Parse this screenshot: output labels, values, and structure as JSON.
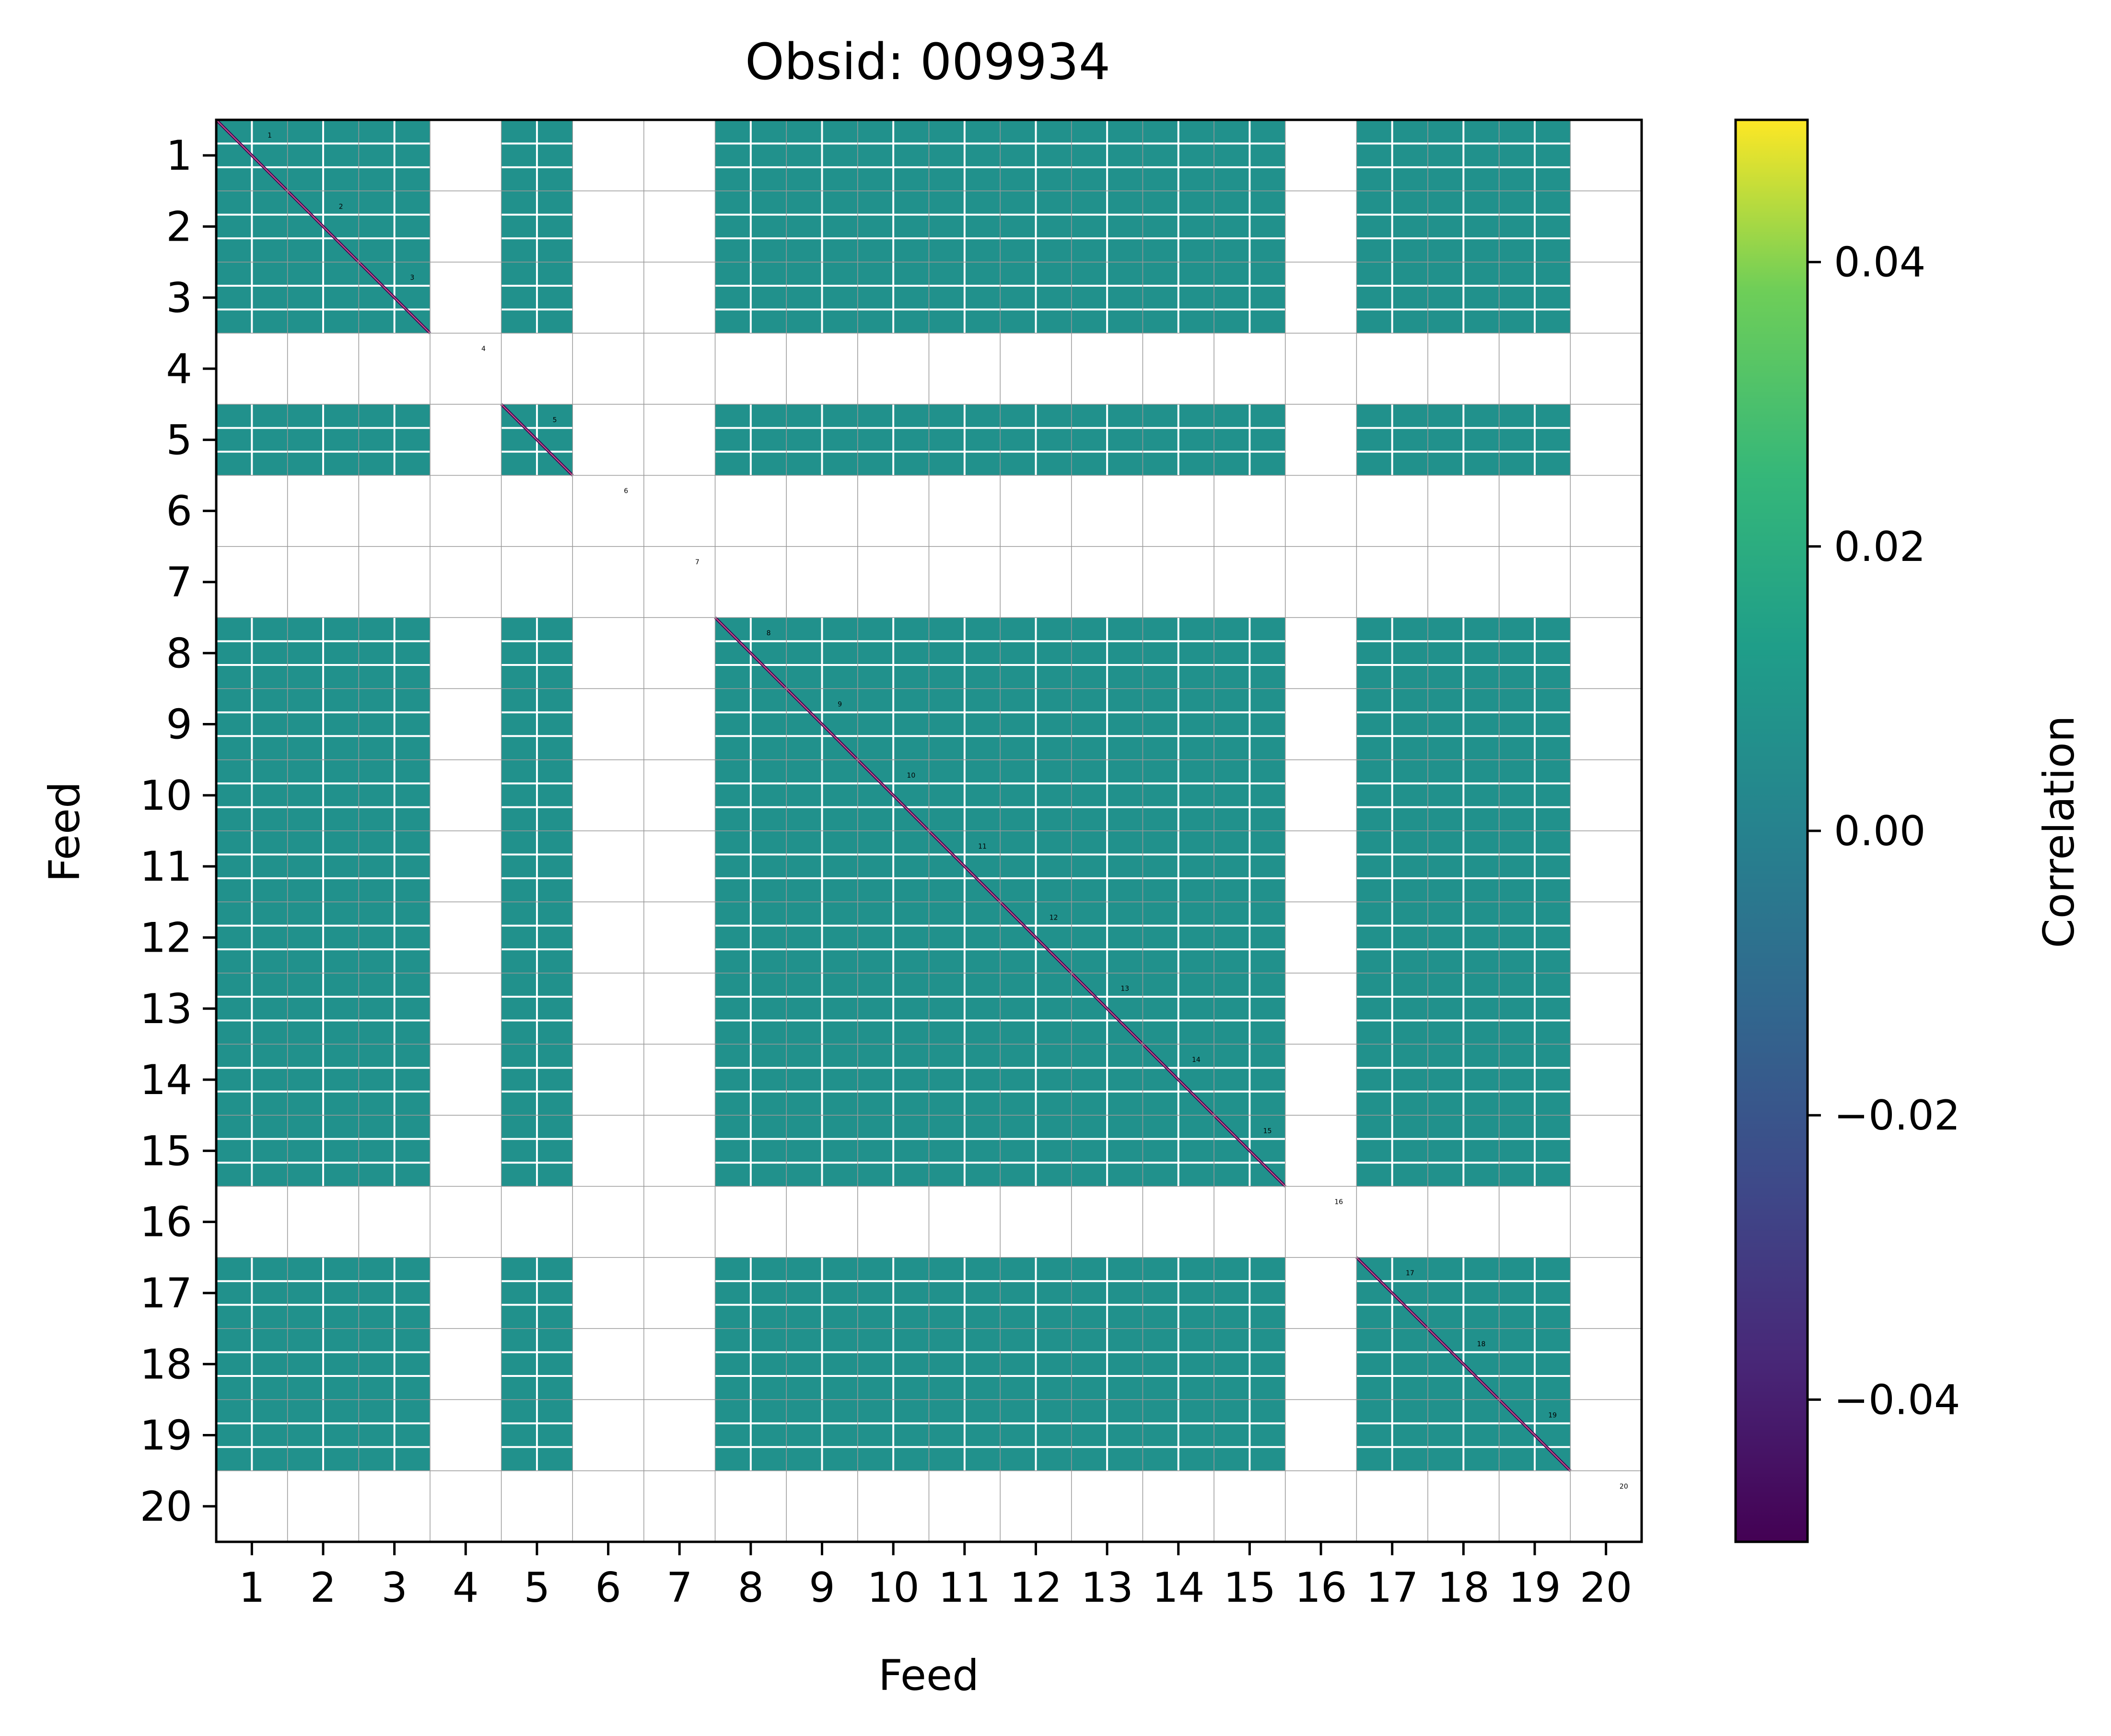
{
  "chart_data": {
    "type": "heatmap",
    "title": "Obsid: 009934",
    "xlabel": "Feed",
    "ylabel": "Feed",
    "feeds": [
      1,
      2,
      3,
      4,
      5,
      6,
      7,
      8,
      9,
      10,
      11,
      12,
      13,
      14,
      15,
      16,
      17,
      18,
      19,
      20
    ],
    "x_tick_labels": [
      "1",
      "2",
      "3",
      "4",
      "5",
      "6",
      "7",
      "8",
      "9",
      "10",
      "11",
      "12",
      "13",
      "14",
      "15",
      "16",
      "17",
      "18",
      "19",
      "20"
    ],
    "y_tick_labels": [
      "1",
      "2",
      "3",
      "4",
      "5",
      "6",
      "7",
      "8",
      "9",
      "10",
      "11",
      "12",
      "13",
      "14",
      "15",
      "16",
      "17",
      "18",
      "19",
      "20"
    ],
    "diagonal_labels": [
      "1",
      "2",
      "3",
      "4",
      "5",
      "6",
      "7",
      "8",
      "9",
      "10",
      "11",
      "12",
      "13",
      "14",
      "15",
      "16",
      "17",
      "18",
      "19",
      "20"
    ],
    "colorbar": {
      "label": "Correlation",
      "colormap": "viridis",
      "vmin": -0.05,
      "vmax": 0.05,
      "ticks": [
        0.04,
        0.02,
        0.0,
        -0.02,
        -0.04
      ],
      "tick_labels": [
        "0.04",
        "0.02",
        "0.00",
        "−0.02",
        "−0.04"
      ]
    },
    "active_feeds": [
      1,
      2,
      3,
      5,
      8,
      9,
      10,
      11,
      12,
      13,
      14,
      15,
      17,
      18,
      19
    ],
    "empty_feeds": [
      4,
      6,
      7,
      16,
      20
    ],
    "typical_value": 0.0,
    "diagonal_value": -0.05,
    "fill_color": "#21918c",
    "diagonal_color": "#440154"
  }
}
